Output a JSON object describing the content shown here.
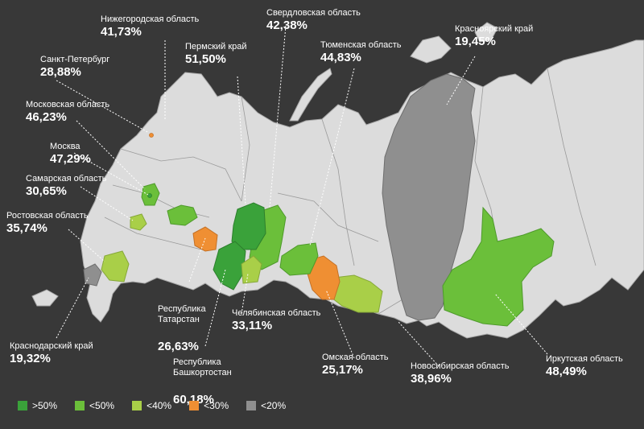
{
  "colors": {
    "background": "#383838",
    "land": "#dcdcdc",
    "border": "#7a7a7a",
    "dark_green": "#3aa23a",
    "green": "#6bbf3a",
    "light_green": "#a9cf48",
    "orange": "#ef8f33",
    "gray": "#8f8f8f"
  },
  "labels": [
    {
      "id": "nizhny",
      "name": "Нижегородская область",
      "value": "41,73%"
    },
    {
      "id": "sverd",
      "name": "Свердловская область",
      "value": "42,38%"
    },
    {
      "id": "krasnoyarsk",
      "name": "Красноярский край",
      "value": "19,45%"
    },
    {
      "id": "spb",
      "name": "Санкт-Петербург",
      "value": "28,88%"
    },
    {
      "id": "perm",
      "name": "Пермский край",
      "value": "51,50%"
    },
    {
      "id": "tyumen",
      "name": "Тюменская область",
      "value": "44,83%"
    },
    {
      "id": "moscow_obl",
      "name": "Московская область",
      "value": "46,23%"
    },
    {
      "id": "moscow",
      "name": "Москва",
      "value": "47,29%"
    },
    {
      "id": "samara",
      "name": "Самарская область",
      "value": "30,65%"
    },
    {
      "id": "rostov",
      "name": "Ростовская область",
      "value": "35,74%"
    },
    {
      "id": "tatarstan",
      "name": "Республика\nТатарстан",
      "value": "26,63%"
    },
    {
      "id": "chelyabinsk",
      "name": "Челябинская область",
      "value": "33,11%"
    },
    {
      "id": "bashkortostan",
      "name": "Республика\nБашкортостан",
      "value": "60,18%"
    },
    {
      "id": "omsk",
      "name": "Омская область",
      "value": "25,17%"
    },
    {
      "id": "novosibirsk",
      "name": "Новосибирская область",
      "value": "38,96%"
    },
    {
      "id": "irkutsk",
      "name": "Иркутская область",
      "value": "48,49%"
    },
    {
      "id": "krasnodar",
      "name": "Краснодарский край",
      "value": "19,32%"
    }
  ],
  "legend": [
    {
      "label": ">50%",
      "color": "#3aa23a"
    },
    {
      "label": "<50%",
      "color": "#6bbf3a"
    },
    {
      "label": "<40%",
      "color": "#a9cf48"
    },
    {
      "label": "<30%",
      "color": "#ef8f33"
    },
    {
      "label": "<20%",
      "color": "#8f8f8f"
    }
  ]
}
